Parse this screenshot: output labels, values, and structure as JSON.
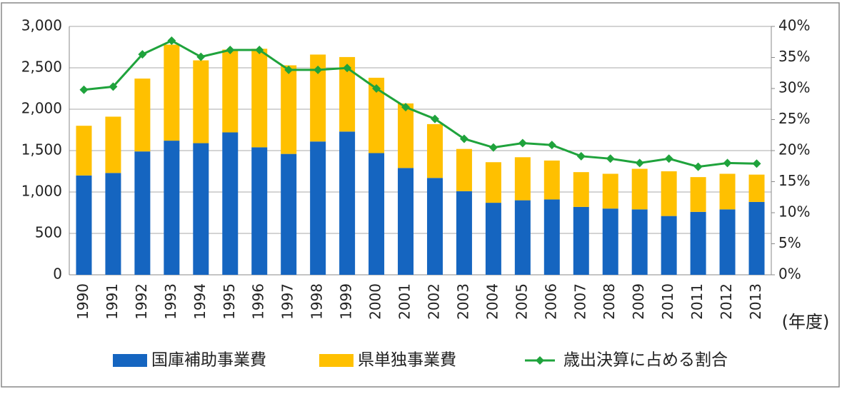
{
  "chart_data": {
    "type": "bar-line",
    "categories": [
      "1990",
      "1991",
      "1992",
      "1993",
      "1994",
      "1995",
      "1996",
      "1997",
      "1998",
      "1999",
      "2000",
      "2001",
      "2002",
      "2003",
      "2004",
      "2005",
      "2006",
      "2007",
      "2008",
      "2009",
      "2010",
      "2011",
      "2012",
      "2013"
    ],
    "x_label": "(年度)",
    "series": [
      {
        "name": "国庫補助事業費",
        "type": "bar",
        "color": "#1565c0",
        "values": [
          1200,
          1230,
          1490,
          1620,
          1590,
          1720,
          1540,
          1460,
          1610,
          1730,
          1470,
          1290,
          1170,
          1010,
          870,
          900,
          910,
          820,
          800,
          790,
          710,
          760,
          790,
          880
        ]
      },
      {
        "name": "県単独事業費",
        "type": "bar",
        "color": "#ffc000",
        "values": [
          600,
          680,
          880,
          1160,
          1000,
          1000,
          1190,
          1070,
          1050,
          900,
          910,
          780,
          650,
          510,
          490,
          520,
          470,
          420,
          420,
          490,
          540,
          420,
          430,
          330
        ]
      },
      {
        "name": "歳出決算に占める割合",
        "type": "line",
        "axis": "y2",
        "color": "#1fa33c",
        "values": [
          29.8,
          30.3,
          35.5,
          37.7,
          35.1,
          36.2,
          36.2,
          33.0,
          33.0,
          33.3,
          30.0,
          27.0,
          25.1,
          21.9,
          20.5,
          21.2,
          20.9,
          19.1,
          18.7,
          18.0,
          18.7,
          17.4,
          18.0,
          17.9
        ]
      }
    ],
    "ylim": [
      0,
      3000
    ],
    "yticks": [
      0,
      {
        "value": 500,
        "label": "500"
      },
      {
        "value": 1000,
        "label": "1,000"
      },
      {
        "value": 1500,
        "label": "1,500"
      },
      {
        "value": 2000,
        "label": "2,000"
      },
      {
        "value": 2500,
        "label": "2,500"
      },
      {
        "value": 3000,
        "label": "3,000"
      }
    ],
    "y2lim": [
      0,
      40
    ],
    "y2ticks": [
      {
        "value": 0,
        "label": "0%"
      },
      {
        "value": 5,
        "label": "5%"
      },
      {
        "value": 10,
        "label": "10%"
      },
      {
        "value": 15,
        "label": "15%"
      },
      {
        "value": 20,
        "label": "20%"
      },
      {
        "value": 25,
        "label": "25%"
      },
      {
        "value": 30,
        "label": "30%"
      },
      {
        "value": 35,
        "label": "35%"
      },
      {
        "value": 40,
        "label": "40%"
      }
    ],
    "grid": true,
    "legend": "bottom"
  }
}
